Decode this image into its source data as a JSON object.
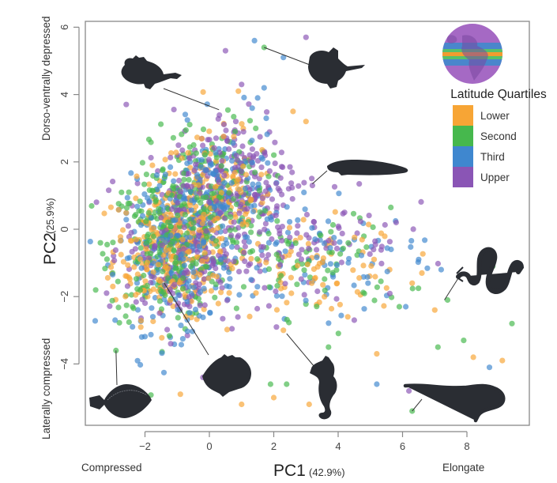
{
  "chart_data": {
    "type": "scatter",
    "title": "",
    "xlabel": "PC1",
    "xlabel_sub": "(42.9%)",
    "ylabel": "PC2",
    "ylabel_sub": "(25.9%)",
    "xlim": [
      -3.9,
      9.9
    ],
    "ylim": [
      -5.9,
      6.2
    ],
    "x_ticks": [
      -2,
      0,
      2,
      4,
      6,
      8
    ],
    "x_tick_labels": [
      "−2",
      "0",
      "2",
      "4",
      "6",
      "8"
    ],
    "y_ticks": [
      -4,
      -2,
      0,
      2,
      4,
      6
    ],
    "y_tick_labels": [
      "−4",
      "−2",
      "0",
      "2",
      "4",
      "6"
    ],
    "grid": false,
    "annotations": {
      "x_low": "Compressed",
      "x_high": "Elongate",
      "y_low": "Laterally compressed",
      "y_high": "Dorso-ventrally depressed"
    },
    "legend": {
      "title": "Latitude Quartiles",
      "position": "top-right",
      "entries": [
        {
          "name": "Lower",
          "color": "#f7a535"
        },
        {
          "name": "Second",
          "color": "#46b84d"
        },
        {
          "name": "Third",
          "color": "#3f87cf"
        },
        {
          "name": "Upper",
          "color": "#8a55b5"
        }
      ]
    },
    "series": [
      {
        "name": "Lower",
        "color": "#f7a535",
        "clusters": [
          {
            "cx": -1.2,
            "cy": -0.6,
            "sx": 0.9,
            "sy": 1.0,
            "n": 260
          },
          {
            "cx": 0.2,
            "cy": 0.8,
            "sx": 0.9,
            "sy": 1.0,
            "n": 150
          },
          {
            "cx": 3.5,
            "cy": -1.2,
            "sx": 1.3,
            "sy": 0.7,
            "n": 70
          }
        ],
        "outliers": [
          [
            8.2,
            -3.8
          ],
          [
            9.1,
            -3.9
          ],
          [
            0.9,
            4.1
          ],
          [
            2.6,
            3.5
          ],
          [
            3.0,
            3.2
          ],
          [
            2.3,
            -3.0
          ],
          [
            3.1,
            -5.2
          ],
          [
            2.0,
            -5.0
          ],
          [
            5.2,
            -3.7
          ],
          [
            1.0,
            -5.2
          ],
          [
            6.3,
            -1.6
          ],
          [
            6.6,
            -1.3
          ],
          [
            5.6,
            -1.2
          ],
          [
            7.0,
            -2.4
          ],
          [
            -3.0,
            -1.7
          ],
          [
            -0.9,
            -4.9
          ],
          [
            4.3,
            -2.6
          ]
        ]
      },
      {
        "name": "Second",
        "color": "#46b84d",
        "clusters": [
          {
            "cx": -1.3,
            "cy": -0.5,
            "sx": 0.9,
            "sy": 1.1,
            "n": 250
          },
          {
            "cx": 0.0,
            "cy": 1.2,
            "sx": 0.9,
            "sy": 1.0,
            "n": 150
          },
          {
            "cx": 3.3,
            "cy": -1.0,
            "sx": 1.4,
            "sy": 0.8,
            "n": 70
          }
        ],
        "outliers": [
          [
            1.7,
            5.4
          ],
          [
            6.3,
            -5.4
          ],
          [
            7.4,
            -2.1
          ],
          [
            9.4,
            -2.8
          ],
          [
            7.1,
            -3.5
          ],
          [
            7.9,
            -3.3
          ],
          [
            -2.9,
            -3.6
          ],
          [
            1.9,
            -4.6
          ],
          [
            3.7,
            -3.5
          ],
          [
            0.8,
            2.9
          ],
          [
            5.9,
            -2.3
          ],
          [
            2.4,
            -4.6
          ],
          [
            8.8,
            -1.1
          ]
        ]
      },
      {
        "name": "Third",
        "color": "#3f87cf",
        "clusters": [
          {
            "cx": -1.0,
            "cy": -0.8,
            "sx": 0.9,
            "sy": 1.1,
            "n": 230
          },
          {
            "cx": 0.3,
            "cy": 1.0,
            "sx": 0.9,
            "sy": 1.0,
            "n": 150
          },
          {
            "cx": 3.6,
            "cy": -1.0,
            "sx": 1.4,
            "sy": 0.8,
            "n": 70
          }
        ],
        "outliers": [
          [
            1.4,
            5.6
          ],
          [
            2.3,
            5.1
          ],
          [
            1.7,
            4.2
          ],
          [
            1.5,
            3.9
          ],
          [
            6.1,
            -2.3
          ],
          [
            5.2,
            -4.6
          ],
          [
            8.7,
            -4.1
          ],
          [
            -2.1,
            -3.2
          ],
          [
            0.9,
            -4.0
          ],
          [
            7.2,
            -1.2
          ],
          [
            6.5,
            -0.9
          ]
        ]
      },
      {
        "name": "Upper",
        "color": "#8a55b5",
        "clusters": [
          {
            "cx": -0.8,
            "cy": -0.6,
            "sx": 0.9,
            "sy": 1.1,
            "n": 230
          },
          {
            "cx": 0.8,
            "cy": 1.6,
            "sx": 1.0,
            "sy": 1.0,
            "n": 180
          },
          {
            "cx": 3.0,
            "cy": -0.2,
            "sx": 1.5,
            "sy": 1.0,
            "n": 90
          }
        ],
        "outliers": [
          [
            3.0,
            5.7
          ],
          [
            0.5,
            5.3
          ],
          [
            1.0,
            4.3
          ],
          [
            3.2,
            1.3
          ],
          [
            -1.2,
            -3.4
          ],
          [
            4.5,
            -2.7
          ],
          [
            6.2,
            -4.8
          ],
          [
            5.8,
            0.2
          ],
          [
            4.2,
            0.5
          ],
          [
            -0.2,
            -4.4
          ],
          [
            5.1,
            -0.6
          ]
        ]
      }
    ],
    "silhouettes": [
      {
        "name": "anglerfish",
        "target": [
          0.3,
          3.55
        ]
      },
      {
        "name": "batfish",
        "target": [
          1.7,
          5.4
        ]
      },
      {
        "name": "snakehead",
        "target": [
          3.2,
          1.35
        ]
      },
      {
        "name": "moray-eel",
        "target": [
          7.3,
          -2.1
        ]
      },
      {
        "name": "flounder",
        "target": [
          -2.9,
          -3.6
        ]
      },
      {
        "name": "butterflyfish",
        "target": [
          -1.4,
          -1.6
        ]
      },
      {
        "name": "seahorse",
        "target": [
          2.4,
          -3.1
        ]
      },
      {
        "name": "pipefish-eel",
        "target": [
          6.3,
          -5.4
        ]
      }
    ],
    "globe_icon": "earth-globe-with-latitude-bands"
  }
}
